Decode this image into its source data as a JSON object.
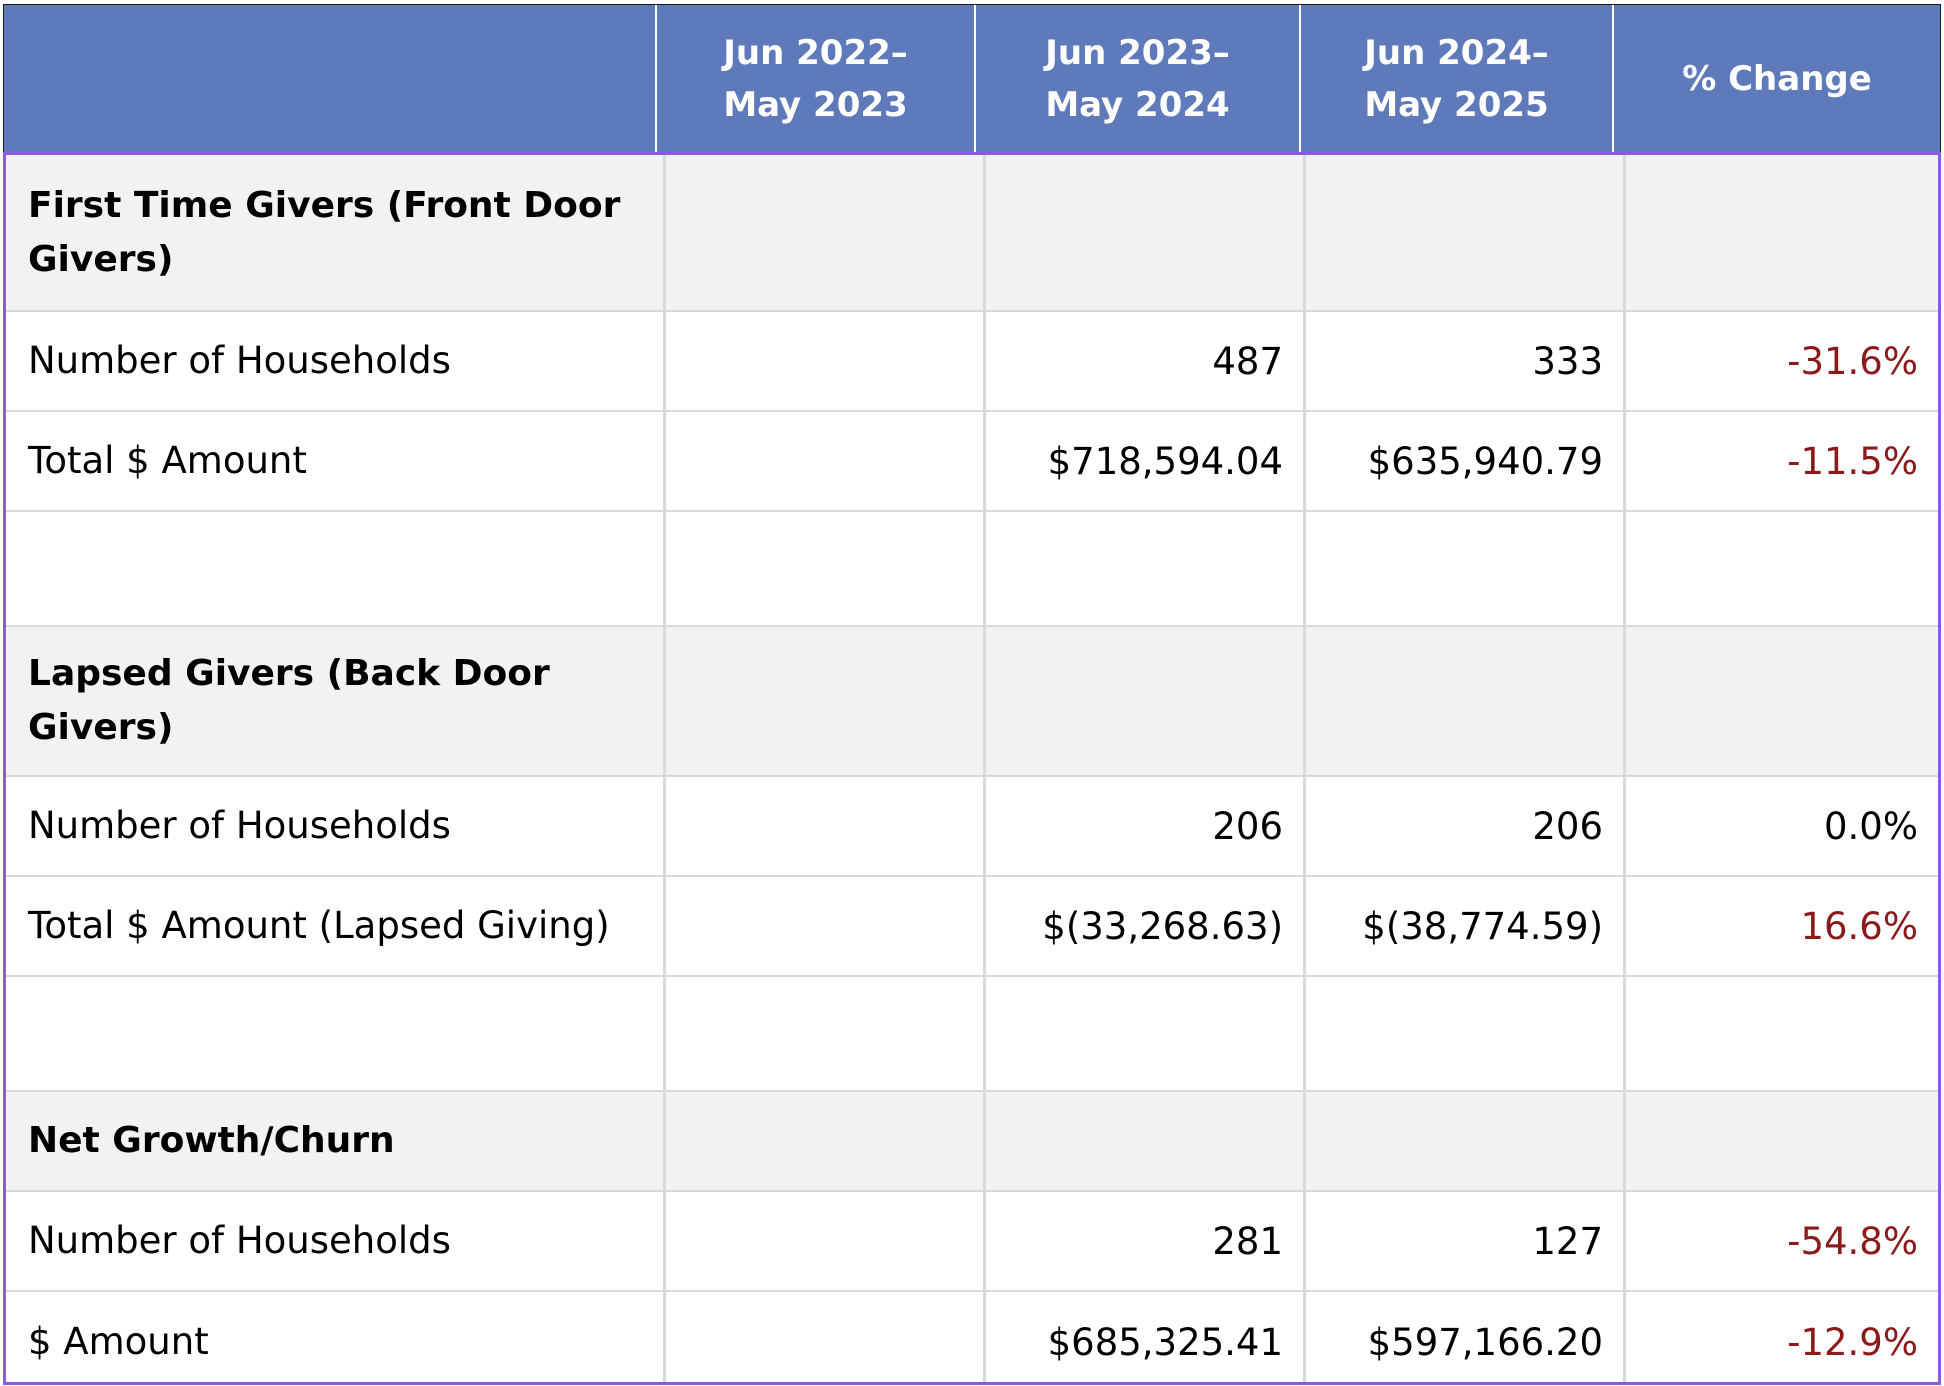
{
  "header": {
    "col0": "",
    "col1": "Jun 2022–\nMay 2023",
    "col2": "Jun 2023–\nMay 2024",
    "col3": "Jun 2024–\nMay 2025",
    "col4": "% Change"
  },
  "colors": {
    "header_bg": "#5f7abb",
    "section_bg": "#f2f2f2",
    "negative_text": "#8b1a1a",
    "table_border": "#8a5ae0"
  },
  "sections": [
    {
      "title": "First Time Givers (Front Door Givers)",
      "rows": [
        {
          "label": "Number of Households",
          "y2022": "",
          "y2023": "487",
          "y2024": "333",
          "change": "-31.6%"
        },
        {
          "label": "Total $ Amount",
          "y2022": "",
          "y2023": "$718,594.04",
          "y2024": "$635,940.79",
          "change": "-11.5%"
        }
      ]
    },
    {
      "title": "Lapsed Givers (Back Door Givers)",
      "rows": [
        {
          "label": "Number of Households",
          "y2022": "",
          "y2023": "206",
          "y2024": "206",
          "change": "0.0%"
        },
        {
          "label": "Total $ Amount (Lapsed Giving)",
          "y2022": "",
          "y2023": "$(33,268.63)",
          "y2024": "$(38,774.59)",
          "change": "16.6%"
        }
      ]
    },
    {
      "title": "Net Growth/Churn",
      "rows": [
        {
          "label": "Number of Households",
          "y2022": "",
          "y2023": "281",
          "y2024": "127",
          "change": "-54.8%"
        },
        {
          "label": "$ Amount",
          "y2022": "",
          "y2023": "$685,325.41",
          "y2024": "$597,166.20",
          "change": "-12.9%"
        }
      ]
    }
  ]
}
